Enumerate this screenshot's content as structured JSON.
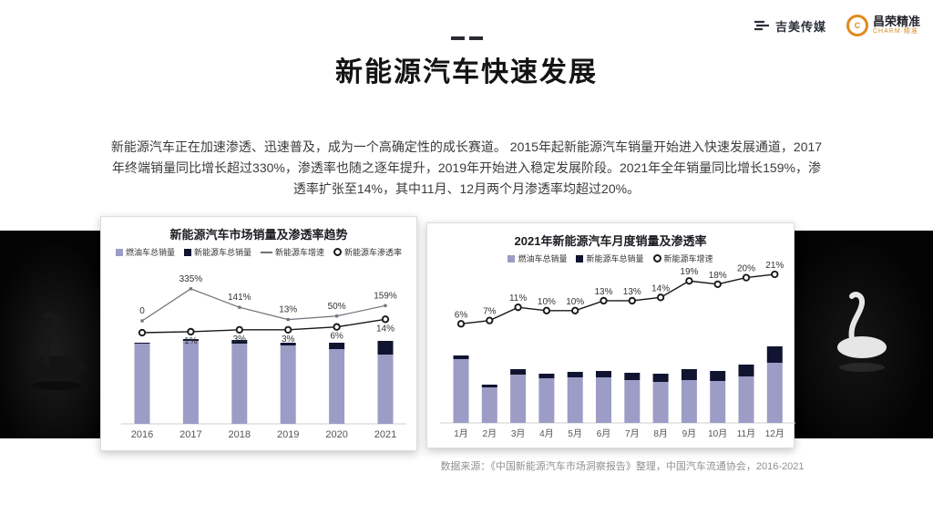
{
  "slide": {
    "title": "新能源汽车快速发展",
    "body_text": "新能源汽车正在加速渗透、迅速普及，成为一个高确定性的成长赛道。 2015年起新能源汽车销量开始进入快速发展通道，2017年终端销量同比增长超过330%，渗透率也随之逐年提升，2019年开始进入稳定发展阶段。2021年全年销量同比增长159%，渗透率扩张至14%，其中11月、12月两个月渗透率均超过20%。",
    "source_note": "数据来源：《中国新能源汽车市场洞察报告》整理，中国汽车流通协会，2016-2021"
  },
  "header": {
    "logo_media": {
      "text": "吉美传媒"
    },
    "logo_charm": {
      "text": "昌荣精准",
      "subtext": "CHARM·精准",
      "icon_letter": "C"
    }
  },
  "colors": {
    "fuel_bar": "#9c9cc6",
    "nev_bar": "#101430",
    "growth_line": "#70707a",
    "penetration_line": "#17171c",
    "accent_orange": "#e08a1e"
  },
  "chart_data": [
    {
      "type": "bar",
      "title": "新能源汽车市场销量及渗透率趋势",
      "legend": [
        "燃油车总销量",
        "新能源车总销量",
        "新能源车增速",
        "新能源车渗透率"
      ],
      "categories": [
        "2016",
        "2017",
        "2018",
        "2019",
        "2020",
        "2021"
      ],
      "series": [
        {
          "name": "燃油车总销量",
          "kind": "bar",
          "values": [
            88,
            91,
            88,
            86,
            82,
            76
          ]
        },
        {
          "name": "新能源车总销量",
          "kind": "bar",
          "values": [
            1,
            2,
            4,
            3,
            7,
            15
          ]
        },
        {
          "name": "新能源车增速",
          "kind": "line",
          "values": [
            0,
            335,
            141,
            13,
            50,
            159
          ],
          "labels": [
            "0",
            "335%",
            "141%",
            "13%",
            "50%",
            "159%"
          ]
        },
        {
          "name": "新能源车渗透率",
          "kind": "line",
          "values": [
            0,
            1,
            3,
            3,
            6,
            14
          ],
          "labels": [
            "",
            "1%",
            "3%",
            "3%",
            "6%",
            "14%"
          ]
        }
      ],
      "ylabel": "",
      "grid": false
    },
    {
      "type": "bar",
      "title": "2021年新能源汽车月度销量及渗透率",
      "legend": [
        "燃油车总销量",
        "新能源车总销量",
        "新能源车增速"
      ],
      "categories": [
        "1月",
        "2月",
        "3月",
        "4月",
        "5月",
        "6月",
        "7月",
        "8月",
        "9月",
        "10月",
        "11月",
        "12月"
      ],
      "series": [
        {
          "name": "燃油车总销量",
          "kind": "bar",
          "values": [
            70,
            39,
            53,
            49,
            50,
            50,
            47,
            45,
            47,
            46,
            51,
            66
          ]
        },
        {
          "name": "新能源车总销量",
          "kind": "bar",
          "values": [
            4,
            3,
            6,
            5,
            6,
            7,
            8,
            9,
            12,
            11,
            13,
            18
          ]
        },
        {
          "name": "新能源车增速",
          "kind": "line",
          "values": [
            6,
            7,
            11,
            10,
            10,
            13,
            13,
            14,
            19,
            18,
            20,
            21
          ],
          "labels": [
            "6%",
            "7%",
            "11%",
            "10%",
            "10%",
            "13%",
            "13%",
            "14%",
            "19%",
            "18%",
            "20%",
            "21%"
          ]
        }
      ],
      "ylabel": "",
      "grid": false
    }
  ]
}
